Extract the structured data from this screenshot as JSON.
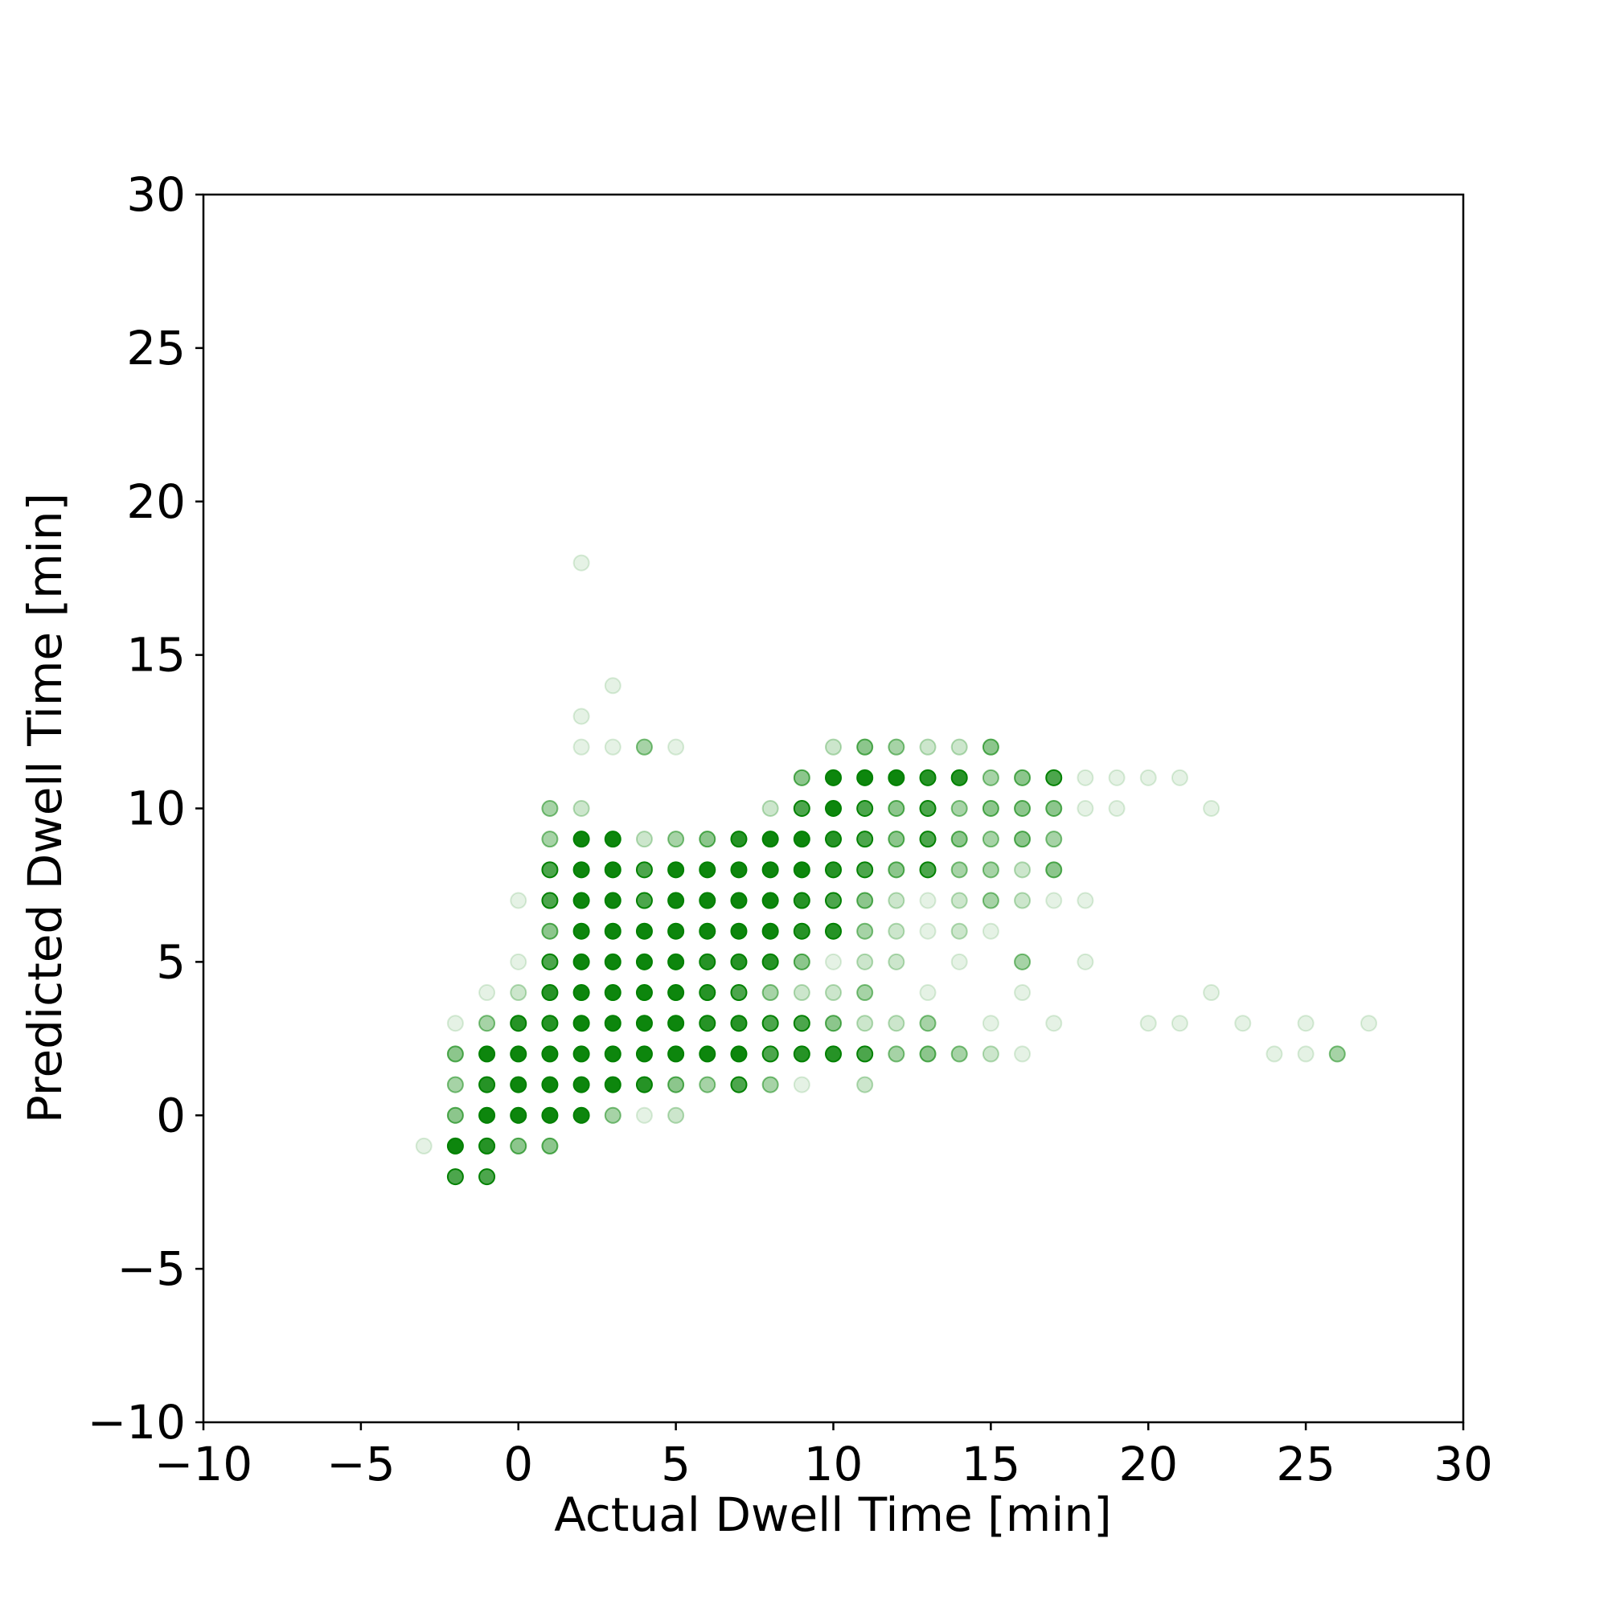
{
  "chart_data": {
    "type": "scatter",
    "title": "",
    "xlabel": "Actual Dwell Time [min]",
    "ylabel": "Predicted Dwell Time [min]",
    "xlim": [
      -10,
      30
    ],
    "ylim": [
      -10,
      30
    ],
    "xticks": [
      -10,
      -5,
      0,
      5,
      10,
      15,
      20,
      25,
      30
    ],
    "yticks": [
      -10,
      -5,
      0,
      5,
      10,
      15,
      20,
      25,
      30
    ],
    "xtick_labels": [
      "−10",
      "−5",
      "0",
      "5",
      "10",
      "15",
      "20",
      "25",
      "30"
    ],
    "ytick_labels": [
      "−10",
      "−5",
      "0",
      "5",
      "10",
      "15",
      "20",
      "25",
      "30"
    ],
    "grid": false,
    "marker_color": "#008000",
    "points": [
      {
        "x": 2,
        "y": 18,
        "alpha": 0.1
      },
      {
        "x": 3,
        "y": 14,
        "alpha": 0.1
      },
      {
        "x": 2,
        "y": 13,
        "alpha": 0.1
      },
      {
        "x": 2,
        "y": 12,
        "alpha": 0.1
      },
      {
        "x": 3,
        "y": 12,
        "alpha": 0.1
      },
      {
        "x": 4,
        "y": 12,
        "alpha": 0.35
      },
      {
        "x": 5,
        "y": 12,
        "alpha": 0.1
      },
      {
        "x": 10,
        "y": 12,
        "alpha": 0.2
      },
      {
        "x": 11,
        "y": 12,
        "alpha": 0.45
      },
      {
        "x": 12,
        "y": 12,
        "alpha": 0.35
      },
      {
        "x": 13,
        "y": 12,
        "alpha": 0.2
      },
      {
        "x": 14,
        "y": 12,
        "alpha": 0.2
      },
      {
        "x": 15,
        "y": 12,
        "alpha": 0.45
      },
      {
        "x": 9,
        "y": 11,
        "alpha": 0.45
      },
      {
        "x": 10,
        "y": 11,
        "alpha": 0.95
      },
      {
        "x": 11,
        "y": 11,
        "alpha": 0.95
      },
      {
        "x": 12,
        "y": 11,
        "alpha": 0.95
      },
      {
        "x": 13,
        "y": 11,
        "alpha": 0.85
      },
      {
        "x": 14,
        "y": 11,
        "alpha": 0.85
      },
      {
        "x": 15,
        "y": 11,
        "alpha": 0.35
      },
      {
        "x": 16,
        "y": 11,
        "alpha": 0.45
      },
      {
        "x": 17,
        "y": 11,
        "alpha": 0.7
      },
      {
        "x": 18,
        "y": 11,
        "alpha": 0.1
      },
      {
        "x": 19,
        "y": 11,
        "alpha": 0.1
      },
      {
        "x": 20,
        "y": 11,
        "alpha": 0.1
      },
      {
        "x": 21,
        "y": 11,
        "alpha": 0.1
      },
      {
        "x": 1,
        "y": 10,
        "alpha": 0.35
      },
      {
        "x": 2,
        "y": 10,
        "alpha": 0.2
      },
      {
        "x": 8,
        "y": 10,
        "alpha": 0.2
      },
      {
        "x": 9,
        "y": 10,
        "alpha": 0.7
      },
      {
        "x": 10,
        "y": 10,
        "alpha": 0.95
      },
      {
        "x": 11,
        "y": 10,
        "alpha": 0.7
      },
      {
        "x": 12,
        "y": 10,
        "alpha": 0.45
      },
      {
        "x": 13,
        "y": 10,
        "alpha": 0.7
      },
      {
        "x": 14,
        "y": 10,
        "alpha": 0.35
      },
      {
        "x": 15,
        "y": 10,
        "alpha": 0.45
      },
      {
        "x": 16,
        "y": 10,
        "alpha": 0.45
      },
      {
        "x": 17,
        "y": 10,
        "alpha": 0.45
      },
      {
        "x": 18,
        "y": 10,
        "alpha": 0.1
      },
      {
        "x": 19,
        "y": 10,
        "alpha": 0.1
      },
      {
        "x": 22,
        "y": 10,
        "alpha": 0.1
      },
      {
        "x": 1,
        "y": 9,
        "alpha": 0.35
      },
      {
        "x": 2,
        "y": 9,
        "alpha": 0.95
      },
      {
        "x": 3,
        "y": 9,
        "alpha": 0.95
      },
      {
        "x": 4,
        "y": 9,
        "alpha": 0.2
      },
      {
        "x": 5,
        "y": 9,
        "alpha": 0.35
      },
      {
        "x": 6,
        "y": 9,
        "alpha": 0.45
      },
      {
        "x": 7,
        "y": 9,
        "alpha": 0.85
      },
      {
        "x": 8,
        "y": 9,
        "alpha": 0.95
      },
      {
        "x": 9,
        "y": 9,
        "alpha": 0.95
      },
      {
        "x": 10,
        "y": 9,
        "alpha": 0.85
      },
      {
        "x": 11,
        "y": 9,
        "alpha": 0.7
      },
      {
        "x": 12,
        "y": 9,
        "alpha": 0.45
      },
      {
        "x": 13,
        "y": 9,
        "alpha": 0.7
      },
      {
        "x": 14,
        "y": 9,
        "alpha": 0.45
      },
      {
        "x": 15,
        "y": 9,
        "alpha": 0.35
      },
      {
        "x": 16,
        "y": 9,
        "alpha": 0.45
      },
      {
        "x": 17,
        "y": 9,
        "alpha": 0.35
      },
      {
        "x": 1,
        "y": 8,
        "alpha": 0.7
      },
      {
        "x": 2,
        "y": 8,
        "alpha": 0.95
      },
      {
        "x": 3,
        "y": 8,
        "alpha": 0.95
      },
      {
        "x": 4,
        "y": 8,
        "alpha": 0.7
      },
      {
        "x": 5,
        "y": 8,
        "alpha": 0.95
      },
      {
        "x": 6,
        "y": 8,
        "alpha": 0.95
      },
      {
        "x": 7,
        "y": 8,
        "alpha": 0.95
      },
      {
        "x": 8,
        "y": 8,
        "alpha": 0.95
      },
      {
        "x": 9,
        "y": 8,
        "alpha": 0.95
      },
      {
        "x": 10,
        "y": 8,
        "alpha": 0.85
      },
      {
        "x": 11,
        "y": 8,
        "alpha": 0.7
      },
      {
        "x": 12,
        "y": 8,
        "alpha": 0.45
      },
      {
        "x": 13,
        "y": 8,
        "alpha": 0.7
      },
      {
        "x": 14,
        "y": 8,
        "alpha": 0.35
      },
      {
        "x": 15,
        "y": 8,
        "alpha": 0.35
      },
      {
        "x": 16,
        "y": 8,
        "alpha": 0.2
      },
      {
        "x": 17,
        "y": 8,
        "alpha": 0.45
      },
      {
        "x": 0,
        "y": 7,
        "alpha": 0.1
      },
      {
        "x": 1,
        "y": 7,
        "alpha": 0.7
      },
      {
        "x": 2,
        "y": 7,
        "alpha": 0.95
      },
      {
        "x": 3,
        "y": 7,
        "alpha": 0.95
      },
      {
        "x": 4,
        "y": 7,
        "alpha": 0.7
      },
      {
        "x": 5,
        "y": 7,
        "alpha": 0.95
      },
      {
        "x": 6,
        "y": 7,
        "alpha": 0.95
      },
      {
        "x": 7,
        "y": 7,
        "alpha": 0.95
      },
      {
        "x": 8,
        "y": 7,
        "alpha": 0.95
      },
      {
        "x": 9,
        "y": 7,
        "alpha": 0.85
      },
      {
        "x": 10,
        "y": 7,
        "alpha": 0.7
      },
      {
        "x": 11,
        "y": 7,
        "alpha": 0.45
      },
      {
        "x": 12,
        "y": 7,
        "alpha": 0.2
      },
      {
        "x": 13,
        "y": 7,
        "alpha": 0.1
      },
      {
        "x": 14,
        "y": 7,
        "alpha": 0.2
      },
      {
        "x": 15,
        "y": 7,
        "alpha": 0.35
      },
      {
        "x": 16,
        "y": 7,
        "alpha": 0.2
      },
      {
        "x": 17,
        "y": 7,
        "alpha": 0.1
      },
      {
        "x": 18,
        "y": 7,
        "alpha": 0.1
      },
      {
        "x": 1,
        "y": 6,
        "alpha": 0.45
      },
      {
        "x": 2,
        "y": 6,
        "alpha": 0.95
      },
      {
        "x": 3,
        "y": 6,
        "alpha": 0.95
      },
      {
        "x": 4,
        "y": 6,
        "alpha": 0.95
      },
      {
        "x": 5,
        "y": 6,
        "alpha": 0.95
      },
      {
        "x": 6,
        "y": 6,
        "alpha": 0.95
      },
      {
        "x": 7,
        "y": 6,
        "alpha": 0.95
      },
      {
        "x": 8,
        "y": 6,
        "alpha": 0.95
      },
      {
        "x": 9,
        "y": 6,
        "alpha": 0.85
      },
      {
        "x": 10,
        "y": 6,
        "alpha": 0.85
      },
      {
        "x": 11,
        "y": 6,
        "alpha": 0.35
      },
      {
        "x": 12,
        "y": 6,
        "alpha": 0.2
      },
      {
        "x": 13,
        "y": 6,
        "alpha": 0.1
      },
      {
        "x": 14,
        "y": 6,
        "alpha": 0.2
      },
      {
        "x": 15,
        "y": 6,
        "alpha": 0.1
      },
      {
        "x": 0,
        "y": 5,
        "alpha": 0.1
      },
      {
        "x": 1,
        "y": 5,
        "alpha": 0.7
      },
      {
        "x": 2,
        "y": 5,
        "alpha": 0.95
      },
      {
        "x": 3,
        "y": 5,
        "alpha": 0.95
      },
      {
        "x": 4,
        "y": 5,
        "alpha": 0.95
      },
      {
        "x": 5,
        "y": 5,
        "alpha": 0.95
      },
      {
        "x": 6,
        "y": 5,
        "alpha": 0.85
      },
      {
        "x": 7,
        "y": 5,
        "alpha": 0.85
      },
      {
        "x": 8,
        "y": 5,
        "alpha": 0.85
      },
      {
        "x": 9,
        "y": 5,
        "alpha": 0.45
      },
      {
        "x": 10,
        "y": 5,
        "alpha": 0.1
      },
      {
        "x": 11,
        "y": 5,
        "alpha": 0.2
      },
      {
        "x": 12,
        "y": 5,
        "alpha": 0.2
      },
      {
        "x": 14,
        "y": 5,
        "alpha": 0.1
      },
      {
        "x": 16,
        "y": 5,
        "alpha": 0.35
      },
      {
        "x": 18,
        "y": 5,
        "alpha": 0.1
      },
      {
        "x": -1,
        "y": 4,
        "alpha": 0.1
      },
      {
        "x": 0,
        "y": 4,
        "alpha": 0.2
      },
      {
        "x": 1,
        "y": 4,
        "alpha": 0.85
      },
      {
        "x": 2,
        "y": 4,
        "alpha": 0.95
      },
      {
        "x": 3,
        "y": 4,
        "alpha": 0.95
      },
      {
        "x": 4,
        "y": 4,
        "alpha": 0.95
      },
      {
        "x": 5,
        "y": 4,
        "alpha": 0.95
      },
      {
        "x": 6,
        "y": 4,
        "alpha": 0.85
      },
      {
        "x": 7,
        "y": 4,
        "alpha": 0.7
      },
      {
        "x": 8,
        "y": 4,
        "alpha": 0.35
      },
      {
        "x": 9,
        "y": 4,
        "alpha": 0.2
      },
      {
        "x": 10,
        "y": 4,
        "alpha": 0.2
      },
      {
        "x": 11,
        "y": 4,
        "alpha": 0.35
      },
      {
        "x": 13,
        "y": 4,
        "alpha": 0.1
      },
      {
        "x": 16,
        "y": 4,
        "alpha": 0.1
      },
      {
        "x": 22,
        "y": 4,
        "alpha": 0.1
      },
      {
        "x": -2,
        "y": 3,
        "alpha": 0.1
      },
      {
        "x": -1,
        "y": 3,
        "alpha": 0.35
      },
      {
        "x": 0,
        "y": 3,
        "alpha": 0.85
      },
      {
        "x": 1,
        "y": 3,
        "alpha": 0.85
      },
      {
        "x": 2,
        "y": 3,
        "alpha": 0.95
      },
      {
        "x": 3,
        "y": 3,
        "alpha": 0.95
      },
      {
        "x": 4,
        "y": 3,
        "alpha": 0.95
      },
      {
        "x": 5,
        "y": 3,
        "alpha": 0.95
      },
      {
        "x": 6,
        "y": 3,
        "alpha": 0.85
      },
      {
        "x": 7,
        "y": 3,
        "alpha": 0.85
      },
      {
        "x": 8,
        "y": 3,
        "alpha": 0.7
      },
      {
        "x": 9,
        "y": 3,
        "alpha": 0.7
      },
      {
        "x": 10,
        "y": 3,
        "alpha": 0.45
      },
      {
        "x": 11,
        "y": 3,
        "alpha": 0.2
      },
      {
        "x": 12,
        "y": 3,
        "alpha": 0.2
      },
      {
        "x": 13,
        "y": 3,
        "alpha": 0.35
      },
      {
        "x": 15,
        "y": 3,
        "alpha": 0.1
      },
      {
        "x": 17,
        "y": 3,
        "alpha": 0.1
      },
      {
        "x": 20,
        "y": 3,
        "alpha": 0.1
      },
      {
        "x": 21,
        "y": 3,
        "alpha": 0.1
      },
      {
        "x": 23,
        "y": 3,
        "alpha": 0.1
      },
      {
        "x": 25,
        "y": 3,
        "alpha": 0.1
      },
      {
        "x": 27,
        "y": 3,
        "alpha": 0.1
      },
      {
        "x": -2,
        "y": 2,
        "alpha": 0.45
      },
      {
        "x": -1,
        "y": 2,
        "alpha": 0.95
      },
      {
        "x": 0,
        "y": 2,
        "alpha": 0.95
      },
      {
        "x": 1,
        "y": 2,
        "alpha": 0.95
      },
      {
        "x": 2,
        "y": 2,
        "alpha": 0.95
      },
      {
        "x": 3,
        "y": 2,
        "alpha": 0.95
      },
      {
        "x": 4,
        "y": 2,
        "alpha": 0.95
      },
      {
        "x": 5,
        "y": 2,
        "alpha": 0.95
      },
      {
        "x": 6,
        "y": 2,
        "alpha": 0.95
      },
      {
        "x": 7,
        "y": 2,
        "alpha": 0.95
      },
      {
        "x": 8,
        "y": 2,
        "alpha": 0.7
      },
      {
        "x": 9,
        "y": 2,
        "alpha": 0.85
      },
      {
        "x": 10,
        "y": 2,
        "alpha": 0.85
      },
      {
        "x": 11,
        "y": 2,
        "alpha": 0.7
      },
      {
        "x": 12,
        "y": 2,
        "alpha": 0.35
      },
      {
        "x": 13,
        "y": 2,
        "alpha": 0.45
      },
      {
        "x": 14,
        "y": 2,
        "alpha": 0.35
      },
      {
        "x": 15,
        "y": 2,
        "alpha": 0.2
      },
      {
        "x": 16,
        "y": 2,
        "alpha": 0.1
      },
      {
        "x": 24,
        "y": 2,
        "alpha": 0.1
      },
      {
        "x": 25,
        "y": 2,
        "alpha": 0.1
      },
      {
        "x": 26,
        "y": 2,
        "alpha": 0.35
      },
      {
        "x": -2,
        "y": 1,
        "alpha": 0.35
      },
      {
        "x": -1,
        "y": 1,
        "alpha": 0.85
      },
      {
        "x": 0,
        "y": 1,
        "alpha": 0.95
      },
      {
        "x": 1,
        "y": 1,
        "alpha": 0.95
      },
      {
        "x": 2,
        "y": 1,
        "alpha": 0.95
      },
      {
        "x": 3,
        "y": 1,
        "alpha": 0.95
      },
      {
        "x": 4,
        "y": 1,
        "alpha": 0.85
      },
      {
        "x": 5,
        "y": 1,
        "alpha": 0.45
      },
      {
        "x": 6,
        "y": 1,
        "alpha": 0.35
      },
      {
        "x": 7,
        "y": 1,
        "alpha": 0.7
      },
      {
        "x": 8,
        "y": 1,
        "alpha": 0.35
      },
      {
        "x": 9,
        "y": 1,
        "alpha": 0.1
      },
      {
        "x": 11,
        "y": 1,
        "alpha": 0.2
      },
      {
        "x": -2,
        "y": 0,
        "alpha": 0.45
      },
      {
        "x": -1,
        "y": 0,
        "alpha": 0.95
      },
      {
        "x": 0,
        "y": 0,
        "alpha": 0.95
      },
      {
        "x": 1,
        "y": 0,
        "alpha": 0.95
      },
      {
        "x": 2,
        "y": 0,
        "alpha": 0.95
      },
      {
        "x": 3,
        "y": 0,
        "alpha": 0.35
      },
      {
        "x": 4,
        "y": 0,
        "alpha": 0.1
      },
      {
        "x": 5,
        "y": 0,
        "alpha": 0.2
      },
      {
        "x": -3,
        "y": -1,
        "alpha": 0.1
      },
      {
        "x": -2,
        "y": -1,
        "alpha": 0.95
      },
      {
        "x": -1,
        "y": -1,
        "alpha": 0.85
      },
      {
        "x": 0,
        "y": -1,
        "alpha": 0.45
      },
      {
        "x": 1,
        "y": -1,
        "alpha": 0.45
      },
      {
        "x": -2,
        "y": -2,
        "alpha": 0.7
      },
      {
        "x": -1,
        "y": -2,
        "alpha": 0.7
      }
    ]
  }
}
